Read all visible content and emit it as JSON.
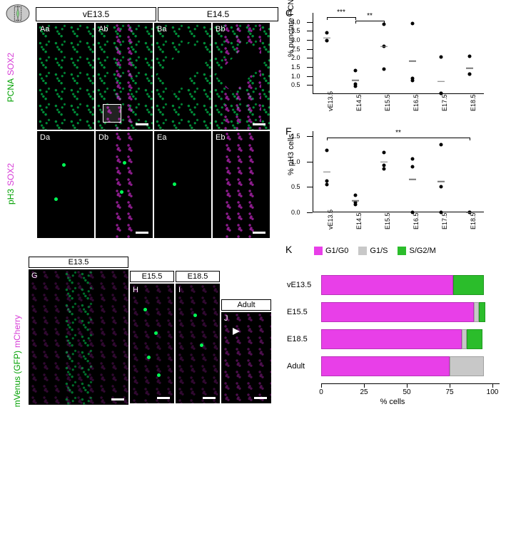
{
  "colors": {
    "magenta": "#d63ad6",
    "green": "#00a000",
    "bar_g1g0": "#e83fe8",
    "bar_g1s": "#c8c8c8",
    "bar_sg2m": "#2bbd2b",
    "black": "#000000",
    "white": "#ffffff"
  },
  "top_headers": [
    "vE13.5",
    "E14.5"
  ],
  "row1_labels": {
    "left": "SOX2",
    "right": "PCNA"
  },
  "row2_labels": {
    "left": "SOX2",
    "right": "pH3"
  },
  "bottom_left_labels": {
    "left": "mCherry",
    "right": "mVenus (GFP)"
  },
  "micrographs": {
    "Aa": "Aa",
    "Ab": "Ab",
    "Ba": "Ba",
    "Bb": "Bb",
    "Da": "Da",
    "Db": "Db",
    "Ea": "Ea",
    "Eb": "Eb",
    "G": "G",
    "H": "H",
    "I": "I",
    "J": "J"
  },
  "bottom_headers": [
    "E13.5",
    "E15.5",
    "E18.5",
    "Adult"
  ],
  "chartC": {
    "panel": "C",
    "ylabel": "% punctate PCNA cells",
    "ylim": [
      0,
      4.5
    ],
    "yticks": [
      0.5,
      1.0,
      1.5,
      2.0,
      2.5,
      3.0,
      3.5,
      4.0
    ],
    "categories": [
      "vE13.5",
      "E14.5",
      "E15.5",
      "E16.5",
      "E17.5",
      "E18.5"
    ],
    "points": {
      "vE13.5": [
        2.95,
        2.95,
        3.4
      ],
      "E14.5": [
        0.45,
        0.55,
        1.3
      ],
      "E15.5": [
        1.4,
        2.65,
        3.85
      ],
      "E16.5": [
        0.75,
        0.85,
        3.9
      ],
      "E17.5": [
        0.05,
        0.05,
        2.05
      ],
      "E18.5": [
        1.1,
        1.12,
        2.1
      ]
    },
    "means": {
      "vE13.5": 3.1,
      "E14.5": 0.77,
      "E15.5": 2.63,
      "E16.5": 1.83,
      "E17.5": 0.7,
      "E18.5": 1.44
    },
    "sigbars": [
      {
        "from": "vE13.5",
        "to": "E14.5",
        "y": 4.25,
        "label": "***"
      },
      {
        "from": "E14.5",
        "to": "E15.5",
        "y": 4.05,
        "label": "**"
      }
    ]
  },
  "chartF": {
    "panel": "F",
    "ylabel": "% pH3 cells",
    "ylim": [
      0,
      1.6
    ],
    "yticks": [
      0,
      0.5,
      1.0,
      1.5
    ],
    "categories": [
      "vE13.5",
      "E14.5",
      "E15.5",
      "E16.5",
      "E17.5",
      "E18.5"
    ],
    "points": {
      "vE13.5": [
        0.55,
        0.62,
        1.22
      ],
      "E14.5": [
        0.16,
        0.2,
        0.34
      ],
      "E15.5": [
        0.86,
        0.92,
        1.18
      ],
      "E16.5": [
        0.0,
        0.9,
        1.05
      ],
      "E17.5": [
        0.0,
        0.5,
        1.33
      ],
      "E18.5": [
        0.0,
        0.0,
        0.0
      ]
    },
    "means": {
      "vE13.5": 0.8,
      "E14.5": 0.23,
      "E15.5": 0.99,
      "E16.5": 0.65,
      "E17.5": 0.61,
      "E18.5": 0.0
    },
    "sigbars": [
      {
        "from": "vE13.5",
        "to": "E18.5",
        "y": 1.47,
        "label": "**"
      }
    ]
  },
  "chartK": {
    "panel": "K",
    "xlabel": "% cells",
    "xlim": [
      0,
      100
    ],
    "xticks": [
      0,
      25,
      50,
      75,
      100
    ],
    "legend": [
      {
        "label": "G1/G0",
        "colorKey": "bar_g1g0"
      },
      {
        "label": "G1/S",
        "colorKey": "bar_g1s"
      },
      {
        "label": "S/G2/M",
        "colorKey": "bar_sg2m"
      }
    ],
    "rows": [
      {
        "label": "vE13.5",
        "g1g0": 77,
        "g1s": 0,
        "sg2m": 18
      },
      {
        "label": "E15.5",
        "g1g0": 89,
        "g1s": 3,
        "sg2m": 4
      },
      {
        "label": "E18.5",
        "g1g0": 82,
        "g1s": 3,
        "sg2m": 9
      },
      {
        "label": "Adult",
        "g1g0": 75,
        "g1s": 20,
        "sg2m": 0
      }
    ]
  }
}
